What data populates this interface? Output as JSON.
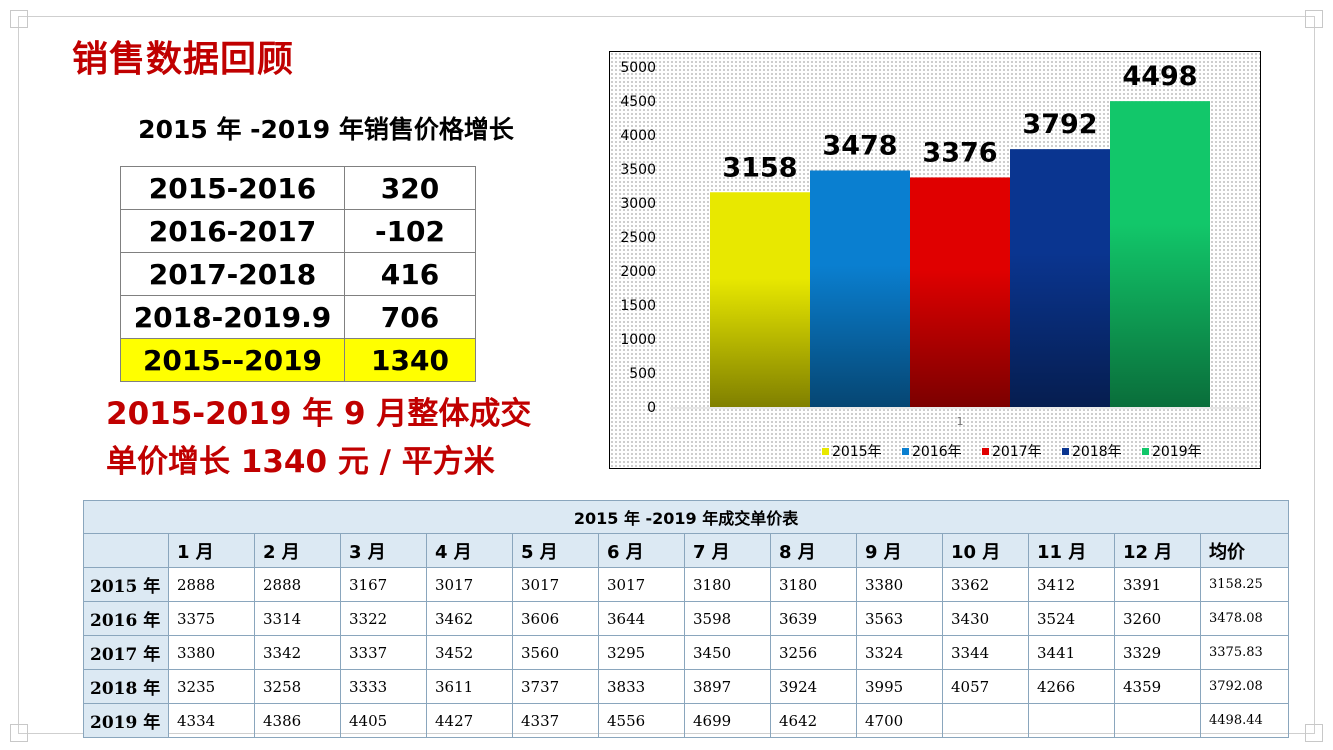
{
  "page": {
    "title": "销售数据回顾"
  },
  "growth": {
    "heading": "2015 年 -2019 年销售价格增长",
    "rows": [
      {
        "period": "2015-2016",
        "value": "320"
      },
      {
        "period": "2016-2017",
        "value": "-102"
      },
      {
        "period": "2017-2018",
        "value": "416"
      },
      {
        "period": "2018-2019.9",
        "value": "706"
      },
      {
        "period": "2015--2019",
        "value": "1340"
      }
    ],
    "highlight_color": "#ffff00"
  },
  "summary": {
    "line1": "2015-2019 年 9 月整体成交",
    "line2": "单价增长 1340 元 / 平方米"
  },
  "chart_data": {
    "type": "bar",
    "categories": [
      "1"
    ],
    "series": [
      {
        "name": "2015年",
        "values": [
          3158
        ],
        "color": "#e8e800"
      },
      {
        "name": "2016年",
        "values": [
          3478
        ],
        "color": "#0a7fd0"
      },
      {
        "name": "2017年",
        "values": [
          3376
        ],
        "color": "#e00000"
      },
      {
        "name": "2018年",
        "values": [
          3792
        ],
        "color": "#0a3590"
      },
      {
        "name": "2019年",
        "values": [
          4498
        ],
        "color": "#12c76a"
      }
    ],
    "data_labels": [
      "3158",
      "3478",
      "3376",
      "3792",
      "4498"
    ],
    "yticks": [
      "0",
      "500",
      "1000",
      "1500",
      "2000",
      "2500",
      "3000",
      "3500",
      "4000",
      "4500",
      "5000"
    ],
    "ylim": [
      0,
      5000
    ],
    "legend_position": "bottom",
    "grid": false
  },
  "price_table": {
    "title": "2015 年 -2019 年成交单价表",
    "headers": [
      "",
      "1 月",
      "2 月",
      "3 月",
      "4 月",
      "5 月",
      "6 月",
      "7 月",
      "8 月",
      "9 月",
      "10 月",
      "11 月",
      "12 月",
      "均价"
    ],
    "rows": [
      {
        "year": "2015 年",
        "values": [
          "2888",
          "2888",
          "3167",
          "3017",
          "3017",
          "3017",
          "3180",
          "3180",
          "3380",
          "3362",
          "3412",
          "3391"
        ],
        "avg": "3158.25"
      },
      {
        "year": "2016 年",
        "values": [
          "3375",
          "3314",
          "3322",
          "3462",
          "3606",
          "3644",
          "3598",
          "3639",
          "3563",
          "3430",
          "3524",
          "3260"
        ],
        "avg": "3478.08"
      },
      {
        "year": "2017 年",
        "values": [
          "3380",
          "3342",
          "3337",
          "3452",
          "3560",
          "3295",
          "3450",
          "3256",
          "3324",
          "3344",
          "3441",
          "3329"
        ],
        "avg": "3375.83"
      },
      {
        "year": "2018 年",
        "values": [
          "3235",
          "3258",
          "3333",
          "3611",
          "3737",
          "3833",
          "3897",
          "3924",
          "3995",
          "4057",
          "4266",
          "4359"
        ],
        "avg": "3792.08"
      },
      {
        "year": "2019 年",
        "values": [
          "4334",
          "4386",
          "4405",
          "4427",
          "4337",
          "4556",
          "4699",
          "4642",
          "4700",
          "",
          "",
          ""
        ],
        "avg": "4498.44"
      }
    ]
  }
}
